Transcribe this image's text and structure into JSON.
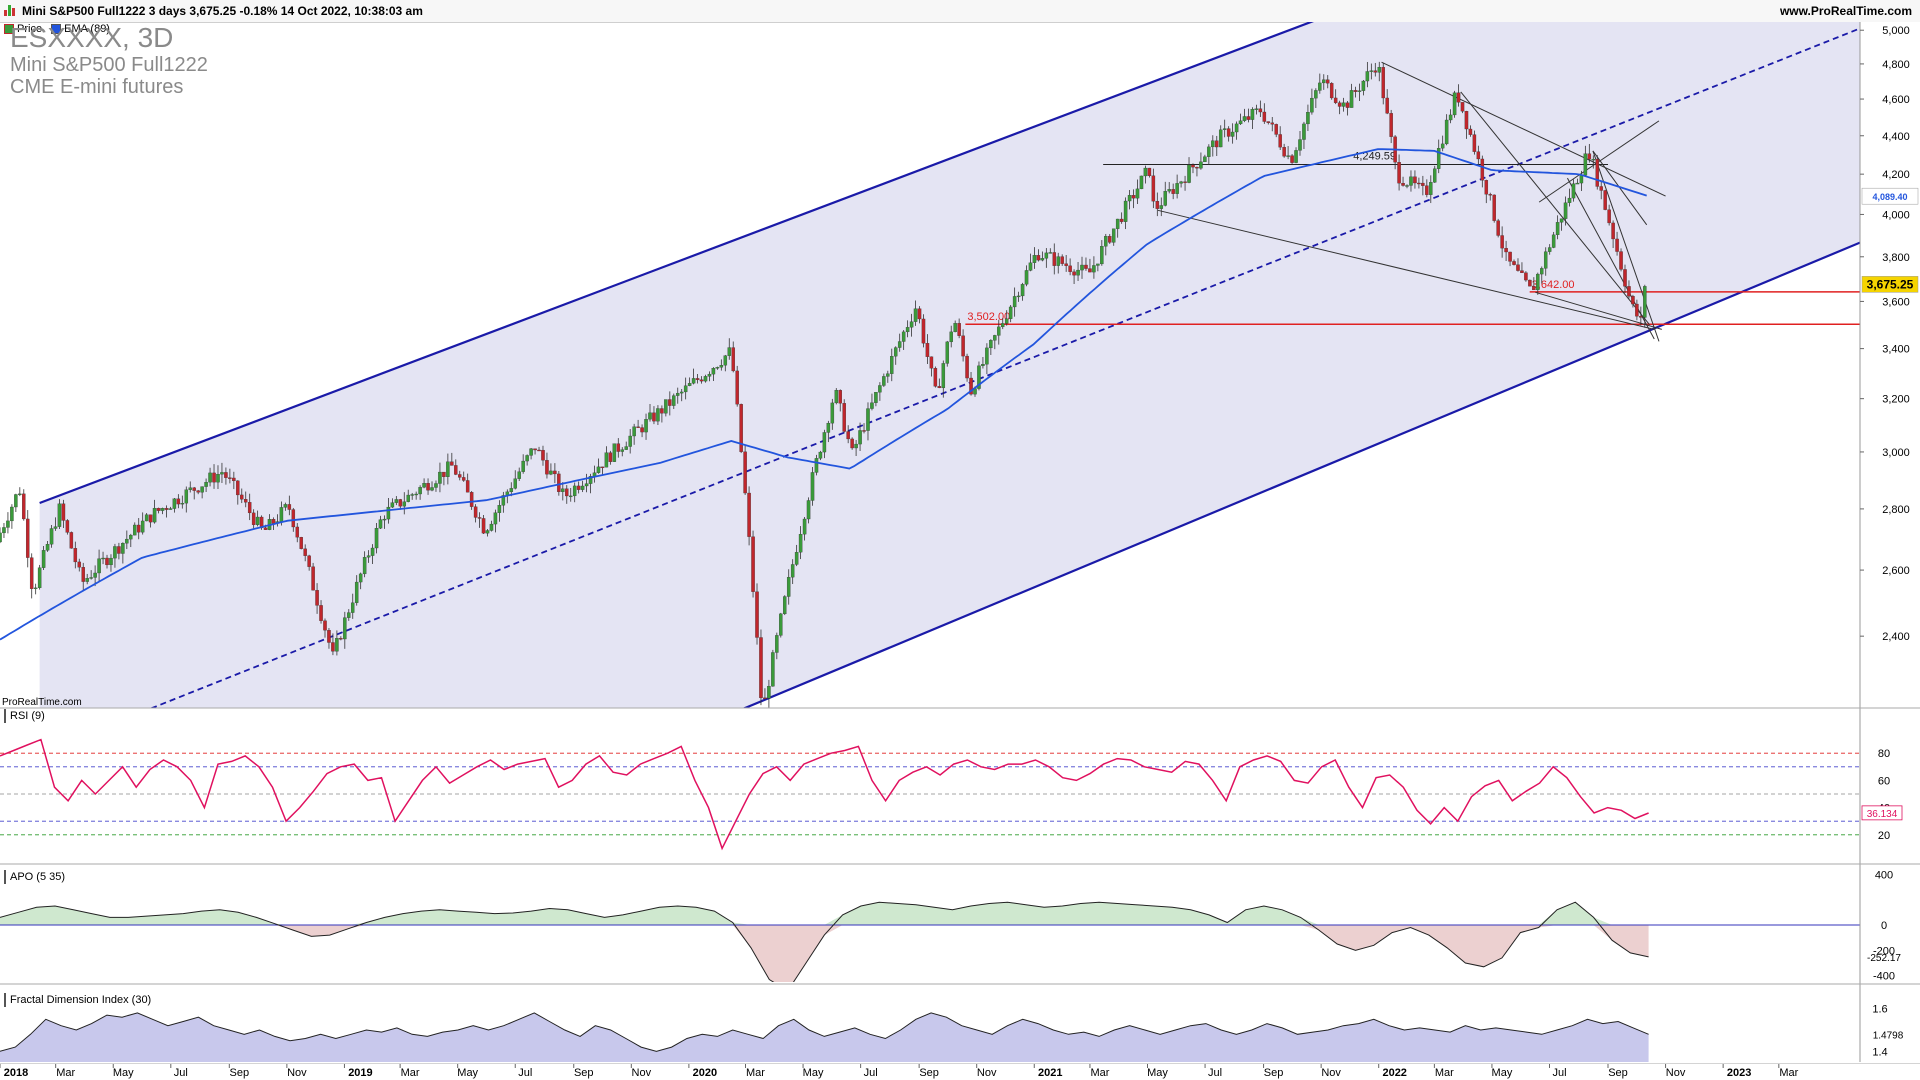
{
  "header": {
    "title": "Mini S&P500 Full1222 3 days 3,675.25 -0.18% 14 Oct 2022, 10:38:03 am",
    "site": "www.ProRealTime.com",
    "watermark": "ProRealTime.com"
  },
  "legend": {
    "price_label": "Price",
    "ema_label": "EMA (89)",
    "symbol": "ESXXXX, 3D",
    "name": "Mini S&P500 Full1222",
    "exchange": "CME E-mini futures"
  },
  "colors": {
    "channel_fill": "#e4e4f3",
    "channel_line": "#1a1aa8",
    "ema": "#2255dd",
    "candle_up": "#3a9a3a",
    "candle_down": "#c0262c",
    "support": "#e02020",
    "rsi": "#e0115f",
    "apo_pos": "#cfe8cf",
    "apo_neg": "#ecd0d0",
    "fdi_fill": "#c8c8ec",
    "price_badge": "#f5d400"
  },
  "panels": {
    "rsi_label": "RSI (9)",
    "apo_label": "APO (5 35)",
    "fdi_label": "Fractal Dimension Index (30)"
  },
  "chart_data": [
    {
      "type": "candlestick",
      "title": "Mini S&P500 Full1222",
      "ylim": [
        2200,
        5050
      ],
      "y_ticks": [
        "5,000",
        "4,800",
        "4,600",
        "4,400",
        "4,200",
        "4,000",
        "3,800",
        "3,600",
        "3,400",
        "3,200",
        "3,000",
        "2,800",
        "2,600",
        "2,400"
      ],
      "x_ticks": [
        "2018",
        "Mar",
        "May",
        "Jul",
        "Sep",
        "Nov",
        "2019",
        "Mar",
        "May",
        "Jul",
        "Sep",
        "Nov",
        "2020",
        "Mar",
        "May",
        "Jul",
        "Sep",
        "Nov",
        "2021",
        "Mar",
        "May",
        "Jul",
        "Sep",
        "Nov",
        "2022",
        "Mar",
        "May",
        "Jul",
        "Sep",
        "Nov",
        "2023",
        "Mar"
      ],
      "x_range": [
        "2018-01",
        "2023-04"
      ],
      "series": [
        {
          "name": "Price",
          "type": "candlestick",
          "path": [
            [
              "2018-01",
              2690
            ],
            [
              "2018-01-26",
              2870
            ],
            [
              "2018-02-09",
              2530
            ],
            [
              "2018-03-09",
              2800
            ],
            [
              "2018-04-02",
              2560
            ],
            [
              "2018-06-15",
              2780
            ],
            [
              "2018-08-29",
              2930
            ],
            [
              "2018-10-11",
              2720
            ],
            [
              "2018-11-07",
              2810
            ],
            [
              "2018-12-24",
              2340
            ],
            [
              "2019-02-15",
              2780
            ],
            [
              "2019-04-30",
              2950
            ],
            [
              "2019-06-03",
              2730
            ],
            [
              "2019-07-26",
              3020
            ],
            [
              "2019-08-26",
              2840
            ],
            [
              "2019-12-31",
              3230
            ],
            [
              "2020-02-19",
              3390
            ],
            [
              "2020-03-23",
              2180
            ],
            [
              "2020-06-08",
              3230
            ],
            [
              "2020-06-26",
              2990
            ],
            [
              "2020-09-02",
              3580
            ],
            [
              "2020-09-23",
              3210
            ],
            [
              "2020-10-12",
              3530
            ],
            [
              "2020-10-30",
              3230
            ],
            [
              "2021-01-08",
              3820
            ],
            [
              "2021-03-04",
              3720
            ],
            [
              "2021-05-07",
              4230
            ],
            [
              "2021-05-12",
              4020
            ],
            [
              "2021-07-23",
              4400
            ],
            [
              "2021-09-02",
              4540
            ],
            [
              "2021-10-04",
              4270
            ],
            [
              "2021-11-05",
              4710
            ],
            [
              "2021-11-30",
              4560
            ],
            [
              "2022-01-04",
              4810
            ],
            [
              "2022-01-24",
              4200
            ],
            [
              "2022-02-24",
              4100
            ],
            [
              "2022-03-29",
              4640
            ],
            [
              "2022-05-20",
              3790
            ],
            [
              "2022-06-16",
              3640
            ],
            [
              "2022-08-16",
              4320
            ],
            [
              "2022-09-30",
              3580
            ],
            [
              "2022-10-13",
              3490
            ],
            [
              "2022-10-14",
              3675.25
            ]
          ]
        },
        {
          "name": "EMA (89)",
          "type": "line",
          "last": 4089.4,
          "path": [
            [
              "2018-01",
              2390
            ],
            [
              "2018-06",
              2640
            ],
            [
              "2018-11",
              2760
            ],
            [
              "2019-06",
              2830
            ],
            [
              "2019-12",
              2960
            ],
            [
              "2020-02-15",
              3040
            ],
            [
              "2020-04-15",
              2980
            ],
            [
              "2020-06-20",
              2940
            ],
            [
              "2020-10",
              3160
            ],
            [
              "2021-01",
              3420
            ],
            [
              "2021-05",
              3860
            ],
            [
              "2021-09",
              4190
            ],
            [
              "2022-01",
              4330
            ],
            [
              "2022-03",
              4320
            ],
            [
              "2022-05",
              4220
            ],
            [
              "2022-08",
              4200
            ],
            [
              "2022-10-14",
              4089.4
            ]
          ]
        }
      ],
      "annotations": [
        {
          "text": "4,249.59",
          "value": 4249.59
        },
        {
          "text": "3,642.00",
          "value": 3642.0
        },
        {
          "text": "3,502.00",
          "value": 3502.0
        }
      ],
      "last_value": "3,675.25",
      "ema_value": "4,089.40"
    },
    {
      "type": "line",
      "title": "RSI (9)",
      "ylim": [
        0,
        100
      ],
      "y_ticks": [
        80,
        60,
        40,
        20
      ],
      "levels": [
        80,
        70,
        50,
        30,
        20
      ],
      "last": 36.134,
      "last_label": "36.134",
      "series": [
        {
          "name": "RSI (9)",
          "values": [
            78,
            82,
            86,
            90,
            55,
            45,
            60,
            50,
            60,
            70,
            55,
            68,
            75,
            70,
            60,
            40,
            72,
            74,
            78,
            70,
            55,
            30,
            40,
            52,
            65,
            70,
            72,
            60,
            62,
            30,
            45,
            60,
            70,
            58,
            64,
            70,
            75,
            68,
            72,
            74,
            76,
            55,
            60,
            72,
            78,
            66,
            64,
            72,
            76,
            80,
            85,
            60,
            40,
            10,
            30,
            50,
            65,
            70,
            60,
            72,
            76,
            80,
            82,
            85,
            60,
            45,
            60,
            66,
            70,
            64,
            72,
            75,
            70,
            68,
            72,
            72,
            75,
            70,
            62,
            60,
            65,
            72,
            76,
            75,
            70,
            68,
            66,
            74,
            72,
            60,
            45,
            70,
            75,
            78,
            74,
            60,
            58,
            70,
            75,
            55,
            40,
            62,
            64,
            55,
            38,
            28,
            40,
            30,
            48,
            56,
            60,
            45,
            52,
            58,
            70,
            62,
            48,
            36,
            40,
            38,
            32,
            36
          ]
        }
      ]
    },
    {
      "type": "area",
      "title": "APO (5 35)",
      "ylim": [
        -450,
        450
      ],
      "y_ticks": [
        400,
        0,
        -200,
        -400
      ],
      "last": -252.17,
      "last_label": "-252.17",
      "series": [
        {
          "name": "APO (5 35)",
          "values": [
            60,
            100,
            140,
            150,
            120,
            90,
            60,
            60,
            70,
            80,
            90,
            110,
            120,
            100,
            60,
            10,
            -40,
            -90,
            -80,
            -30,
            20,
            60,
            90,
            110,
            120,
            110,
            100,
            90,
            95,
            110,
            130,
            120,
            90,
            60,
            80,
            110,
            140,
            150,
            140,
            110,
            20,
            -180,
            -430,
            -520,
            -300,
            -80,
            80,
            150,
            180,
            170,
            160,
            140,
            120,
            150,
            170,
            180,
            160,
            140,
            150,
            170,
            180,
            170,
            160,
            150,
            140,
            120,
            80,
            20,
            120,
            150,
            120,
            60,
            -40,
            -150,
            -200,
            -160,
            -60,
            -20,
            -80,
            -180,
            -300,
            -330,
            -260,
            -60,
            -20,
            120,
            180,
            60,
            -120,
            -220,
            -252
          ]
        }
      ]
    },
    {
      "type": "area",
      "title": "Fractal Dimension Index (30)",
      "ylim": [
        1.35,
        1.65
      ],
      "y_ticks": [
        1.6,
        1.4
      ],
      "last": 1.4798,
      "last_label": "1.4798",
      "series": [
        {
          "name": "Fractal Dimension Index (30)",
          "values": [
            1.4,
            1.42,
            1.48,
            1.55,
            1.52,
            1.5,
            1.53,
            1.57,
            1.56,
            1.58,
            1.55,
            1.52,
            1.54,
            1.56,
            1.52,
            1.5,
            1.48,
            1.5,
            1.47,
            1.45,
            1.46,
            1.48,
            1.46,
            1.48,
            1.5,
            1.49,
            1.51,
            1.48,
            1.47,
            1.49,
            1.5,
            1.52,
            1.5,
            1.52,
            1.55,
            1.58,
            1.54,
            1.5,
            1.47,
            1.52,
            1.5,
            1.46,
            1.42,
            1.4,
            1.42,
            1.46,
            1.48,
            1.47,
            1.5,
            1.48,
            1.46,
            1.52,
            1.55,
            1.5,
            1.47,
            1.49,
            1.51,
            1.48,
            1.46,
            1.5,
            1.55,
            1.58,
            1.56,
            1.52,
            1.5,
            1.48,
            1.52,
            1.55,
            1.53,
            1.5,
            1.48,
            1.49,
            1.47,
            1.5,
            1.52,
            1.5,
            1.48,
            1.5,
            1.52,
            1.53,
            1.5,
            1.48,
            1.5,
            1.53,
            1.51,
            1.48,
            1.49,
            1.5,
            1.52,
            1.53,
            1.55,
            1.52,
            1.5,
            1.51,
            1.5,
            1.49,
            1.52,
            1.5,
            1.51,
            1.5,
            1.49,
            1.48,
            1.5,
            1.52,
            1.55,
            1.53,
            1.54,
            1.51,
            1.48
          ]
        }
      ]
    }
  ]
}
